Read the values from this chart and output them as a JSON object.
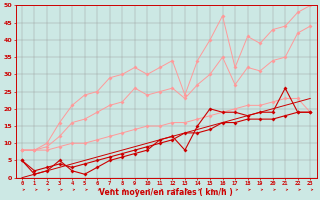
{
  "xlabel": "Vent moyen/en rafales ( km/h )",
  "background_color": "#cce8e4",
  "grid_color": "#999999",
  "x": [
    0,
    1,
    2,
    3,
    4,
    5,
    6,
    7,
    8,
    9,
    10,
    11,
    12,
    13,
    14,
    15,
    16,
    17,
    18,
    19,
    20,
    21,
    22,
    23
  ],
  "line_light1": [
    8,
    8,
    10,
    16,
    21,
    24,
    25,
    29,
    30,
    32,
    30,
    32,
    34,
    24,
    34,
    40,
    47,
    32,
    41,
    39,
    43,
    44,
    48,
    50
  ],
  "line_light2": [
    8,
    8,
    9,
    12,
    16,
    17,
    19,
    21,
    22,
    26,
    24,
    25,
    26,
    23,
    27,
    30,
    35,
    27,
    32,
    31,
    34,
    35,
    42,
    44
  ],
  "line_light3": [
    8,
    8,
    8,
    9,
    10,
    10,
    11,
    12,
    13,
    14,
    15,
    15,
    16,
    16,
    17,
    18,
    19,
    20,
    21,
    21,
    22,
    23,
    23,
    19
  ],
  "line_dark1": [
    5,
    1,
    2,
    5,
    2,
    1,
    3,
    5,
    6,
    7,
    8,
    11,
    12,
    8,
    15,
    20,
    19,
    19,
    18,
    19,
    19,
    26,
    19,
    19
  ],
  "line_dark2": [
    5,
    2,
    3,
    4,
    3,
    4,
    5,
    6,
    7,
    8,
    9,
    10,
    11,
    13,
    13,
    14,
    16,
    16,
    17,
    17,
    17,
    18,
    19,
    19
  ],
  "line_diag": [
    0,
    1,
    2,
    3,
    4,
    5,
    6,
    7,
    8,
    9,
    10,
    11,
    12,
    13,
    14,
    15,
    16,
    17,
    18,
    19,
    20,
    21,
    22,
    23
  ],
  "color_dark": "#cc0000",
  "color_light": "#ff9999",
  "ylim": [
    0,
    50
  ],
  "xlim": [
    -0.5,
    23.5
  ],
  "yticks": [
    0,
    5,
    10,
    15,
    20,
    25,
    30,
    35,
    40,
    45,
    50
  ]
}
